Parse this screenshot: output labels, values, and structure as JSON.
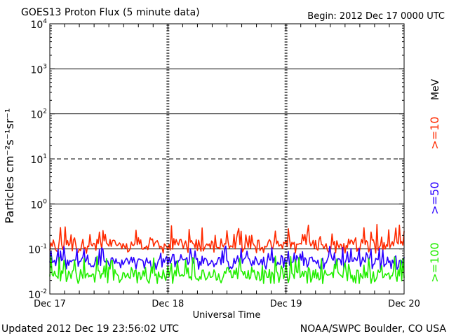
{
  "header": {
    "title": "GOES13 Proton Flux (5 minute data)",
    "begin": "Begin: 2012 Dec 17 0000 UTC"
  },
  "footer": {
    "updated": "Updated 2012 Dec 19 23:56:02 UTC",
    "credit": "NOAA/SWPC Boulder, CO USA"
  },
  "chart_data": {
    "type": "line",
    "title": "GOES13 Proton Flux (5 minute data)",
    "xlabel": "Universal Time",
    "ylabel": "Particles cm⁻²s⁻¹sr⁻¹",
    "yscale": "log",
    "ylim": [
      0.01,
      10000
    ],
    "xlim": [
      "2012-12-17",
      "2012-12-20"
    ],
    "x_ticks": [
      "Dec 17",
      "Dec 18",
      "Dec 19",
      "Dec 20"
    ],
    "y_ticks": [
      {
        "base": "10",
        "exp": "-2",
        "value": 0.01
      },
      {
        "base": "10",
        "exp": "-1",
        "value": 0.1
      },
      {
        "base": "10",
        "exp": "0",
        "value": 1
      },
      {
        "base": "10",
        "exp": "1",
        "value": 10
      },
      {
        "base": "10",
        "exp": "2",
        "value": 100
      },
      {
        "base": "10",
        "exp": "3",
        "value": 1000
      },
      {
        "base": "10",
        "exp": "4",
        "value": 10000
      }
    ],
    "dashed_threshold": 10,
    "right_axis_label": "MeV",
    "series": [
      {
        "name": ">=10",
        "color": "#ff2a00",
        "typical_range": [
          0.08,
          0.35
        ],
        "mean": 0.13
      },
      {
        "name": ">=50",
        "color": "#2a00ff",
        "typical_range": [
          0.035,
          0.12
        ],
        "mean": 0.055
      },
      {
        "name": ">=100",
        "color": "#22ee00",
        "typical_range": [
          0.017,
          0.07
        ],
        "mean": 0.028
      }
    ]
  }
}
